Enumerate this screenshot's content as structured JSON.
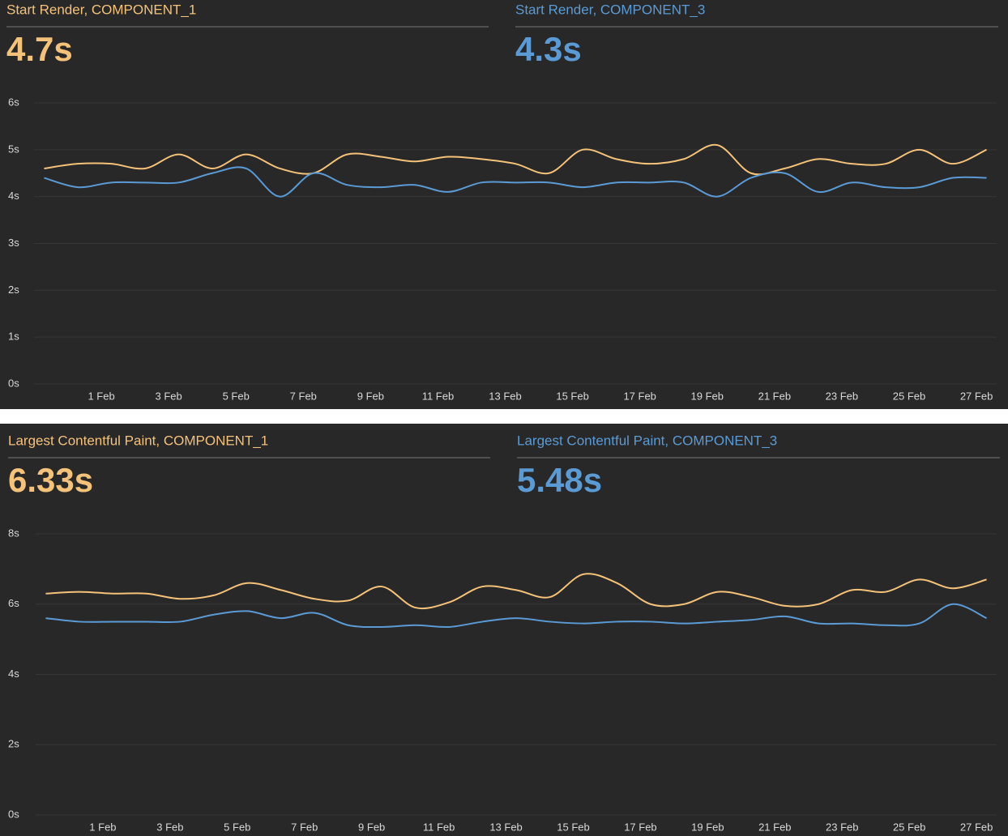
{
  "chart_data": [
    {
      "type": "line",
      "x": [
        -0.7,
        0.3,
        1.3,
        2.3,
        3.3,
        4.3,
        5.3,
        6.3,
        7.3,
        8.3,
        9.3,
        10.3,
        11.3,
        12.3,
        13.3,
        14.3,
        15.3,
        16.3,
        17.3,
        18.3,
        19.3,
        20.3,
        21.3,
        22.3,
        23.3,
        24.3,
        25.3,
        26.3,
        27.3
      ],
      "series": [
        {
          "name": "Start Render, COMPONENT_1",
          "summary": "4.7s",
          "color": "#f5c27a",
          "values": [
            4.6,
            4.7,
            4.7,
            4.6,
            4.9,
            4.6,
            4.9,
            4.6,
            4.5,
            4.9,
            4.85,
            4.75,
            4.85,
            4.8,
            4.7,
            4.5,
            5.0,
            4.8,
            4.7,
            4.8,
            5.1,
            4.5,
            4.6,
            4.8,
            4.7,
            4.7,
            5.0,
            4.7,
            5.0
          ]
        },
        {
          "name": "Start Render, COMPONENT_3",
          "summary": "4.3s",
          "color": "#5b9bd5",
          "values": [
            4.4,
            4.2,
            4.3,
            4.3,
            4.3,
            4.5,
            4.6,
            4.0,
            4.5,
            4.25,
            4.2,
            4.25,
            4.1,
            4.3,
            4.3,
            4.3,
            4.2,
            4.3,
            4.3,
            4.3,
            4.0,
            4.4,
            4.5,
            4.1,
            4.3,
            4.2,
            4.2,
            4.4,
            4.4
          ]
        }
      ],
      "xlim": [
        -1,
        27.6
      ],
      "xticks": [
        {
          "value": 1,
          "label": "1 Feb"
        },
        {
          "value": 3,
          "label": "3 Feb"
        },
        {
          "value": 5,
          "label": "5 Feb"
        },
        {
          "value": 7,
          "label": "7 Feb"
        },
        {
          "value": 9,
          "label": "9 Feb"
        },
        {
          "value": 11,
          "label": "11 Feb"
        },
        {
          "value": 13,
          "label": "13 Feb"
        },
        {
          "value": 15,
          "label": "15 Feb"
        },
        {
          "value": 17,
          "label": "17 Feb"
        },
        {
          "value": 19,
          "label": "19 Feb"
        },
        {
          "value": 21,
          "label": "21 Feb"
        },
        {
          "value": 23,
          "label": "23 Feb"
        },
        {
          "value": 25,
          "label": "25 Feb"
        },
        {
          "value": 27,
          "label": "27 Feb"
        }
      ],
      "ylim": [
        0,
        6
      ],
      "yticks": [
        {
          "value": 0,
          "label": "0s"
        },
        {
          "value": 1,
          "label": "1s"
        },
        {
          "value": 2,
          "label": "2s"
        },
        {
          "value": 3,
          "label": "3s"
        },
        {
          "value": 4,
          "label": "4s"
        },
        {
          "value": 5,
          "label": "5s"
        },
        {
          "value": 6,
          "label": "6s"
        }
      ],
      "grid": true
    },
    {
      "type": "line",
      "x": [
        -0.7,
        0.3,
        1.3,
        2.3,
        3.3,
        4.3,
        5.3,
        6.3,
        7.3,
        8.3,
        9.3,
        10.3,
        11.3,
        12.3,
        13.3,
        14.3,
        15.3,
        16.3,
        17.3,
        18.3,
        19.3,
        20.3,
        21.3,
        22.3,
        23.3,
        24.3,
        25.3,
        26.3,
        27.3
      ],
      "series": [
        {
          "name": "Largest Contentful Paint, COMPONENT_1",
          "summary": "6.33s",
          "color": "#f5c27a",
          "values": [
            6.3,
            6.35,
            6.3,
            6.3,
            6.15,
            6.25,
            6.6,
            6.4,
            6.15,
            6.1,
            6.5,
            5.9,
            6.05,
            6.5,
            6.4,
            6.2,
            6.85,
            6.6,
            6.0,
            6.0,
            6.35,
            6.2,
            5.95,
            6.0,
            6.4,
            6.35,
            6.7,
            6.45,
            6.7
          ]
        },
        {
          "name": "Largest Contentful Paint, COMPONENT_3",
          "summary": "5.48s",
          "color": "#5b9bd5",
          "values": [
            5.6,
            5.5,
            5.5,
            5.5,
            5.5,
            5.7,
            5.8,
            5.6,
            5.75,
            5.4,
            5.35,
            5.4,
            5.35,
            5.5,
            5.6,
            5.5,
            5.45,
            5.5,
            5.5,
            5.45,
            5.5,
            5.55,
            5.65,
            5.45,
            5.45,
            5.4,
            5.45,
            6.0,
            5.6
          ]
        }
      ],
      "xlim": [
        -1,
        27.6
      ],
      "xticks": [
        {
          "value": 1,
          "label": "1 Feb"
        },
        {
          "value": 3,
          "label": "3 Feb"
        },
        {
          "value": 5,
          "label": "5 Feb"
        },
        {
          "value": 7,
          "label": "7 Feb"
        },
        {
          "value": 9,
          "label": "9 Feb"
        },
        {
          "value": 11,
          "label": "11 Feb"
        },
        {
          "value": 13,
          "label": "13 Feb"
        },
        {
          "value": 15,
          "label": "15 Feb"
        },
        {
          "value": 17,
          "label": "17 Feb"
        },
        {
          "value": 19,
          "label": "19 Feb"
        },
        {
          "value": 21,
          "label": "21 Feb"
        },
        {
          "value": 23,
          "label": "23 Feb"
        },
        {
          "value": 25,
          "label": "25 Feb"
        },
        {
          "value": 27,
          "label": "27 Feb"
        }
      ],
      "ylim": [
        0,
        8
      ],
      "yticks": [
        {
          "value": 0,
          "label": "0s"
        },
        {
          "value": 2,
          "label": "2s"
        },
        {
          "value": 4,
          "label": "4s"
        },
        {
          "value": 6,
          "label": "6s"
        },
        {
          "value": 8,
          "label": "8s"
        }
      ],
      "grid": true
    }
  ]
}
